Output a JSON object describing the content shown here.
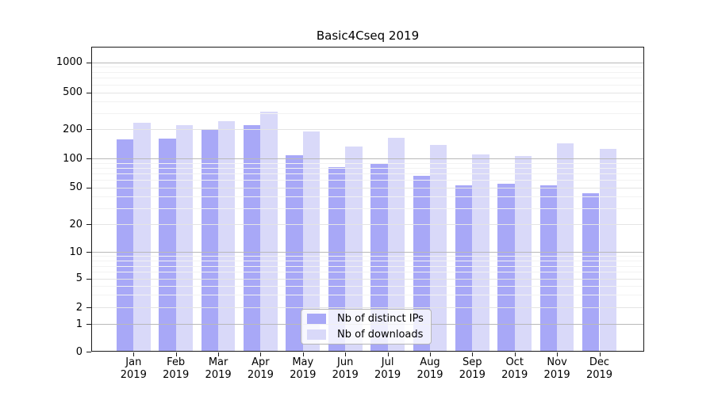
{
  "chart_data": {
    "type": "bar",
    "title": "Basic4Cseq 2019",
    "categories": [
      "Jan",
      "Feb",
      "Mar",
      "Apr",
      "May",
      "Jun",
      "Jul",
      "Aug",
      "Sep",
      "Oct",
      "Nov",
      "Dec"
    ],
    "x_tick_year": "2019",
    "series": [
      {
        "name": "Nb of distinct IPs",
        "color": "#a8a8f7",
        "values": [
          157,
          162,
          198,
          222,
          107,
          81,
          87,
          66,
          53,
          55,
          53,
          43
        ]
      },
      {
        "name": "Nb of downloads",
        "color": "#d9d9f9",
        "values": [
          235,
          222,
          243,
          310,
          190,
          132,
          163,
          139,
          110,
          106,
          144,
          125
        ]
      }
    ],
    "y_ticks": [
      0,
      1,
      2,
      5,
      10,
      20,
      50,
      100,
      200,
      500,
      1000
    ],
    "y_scale": "symlog",
    "ylim": [
      0,
      1400
    ],
    "grid": true,
    "legend_position": "lower center"
  }
}
